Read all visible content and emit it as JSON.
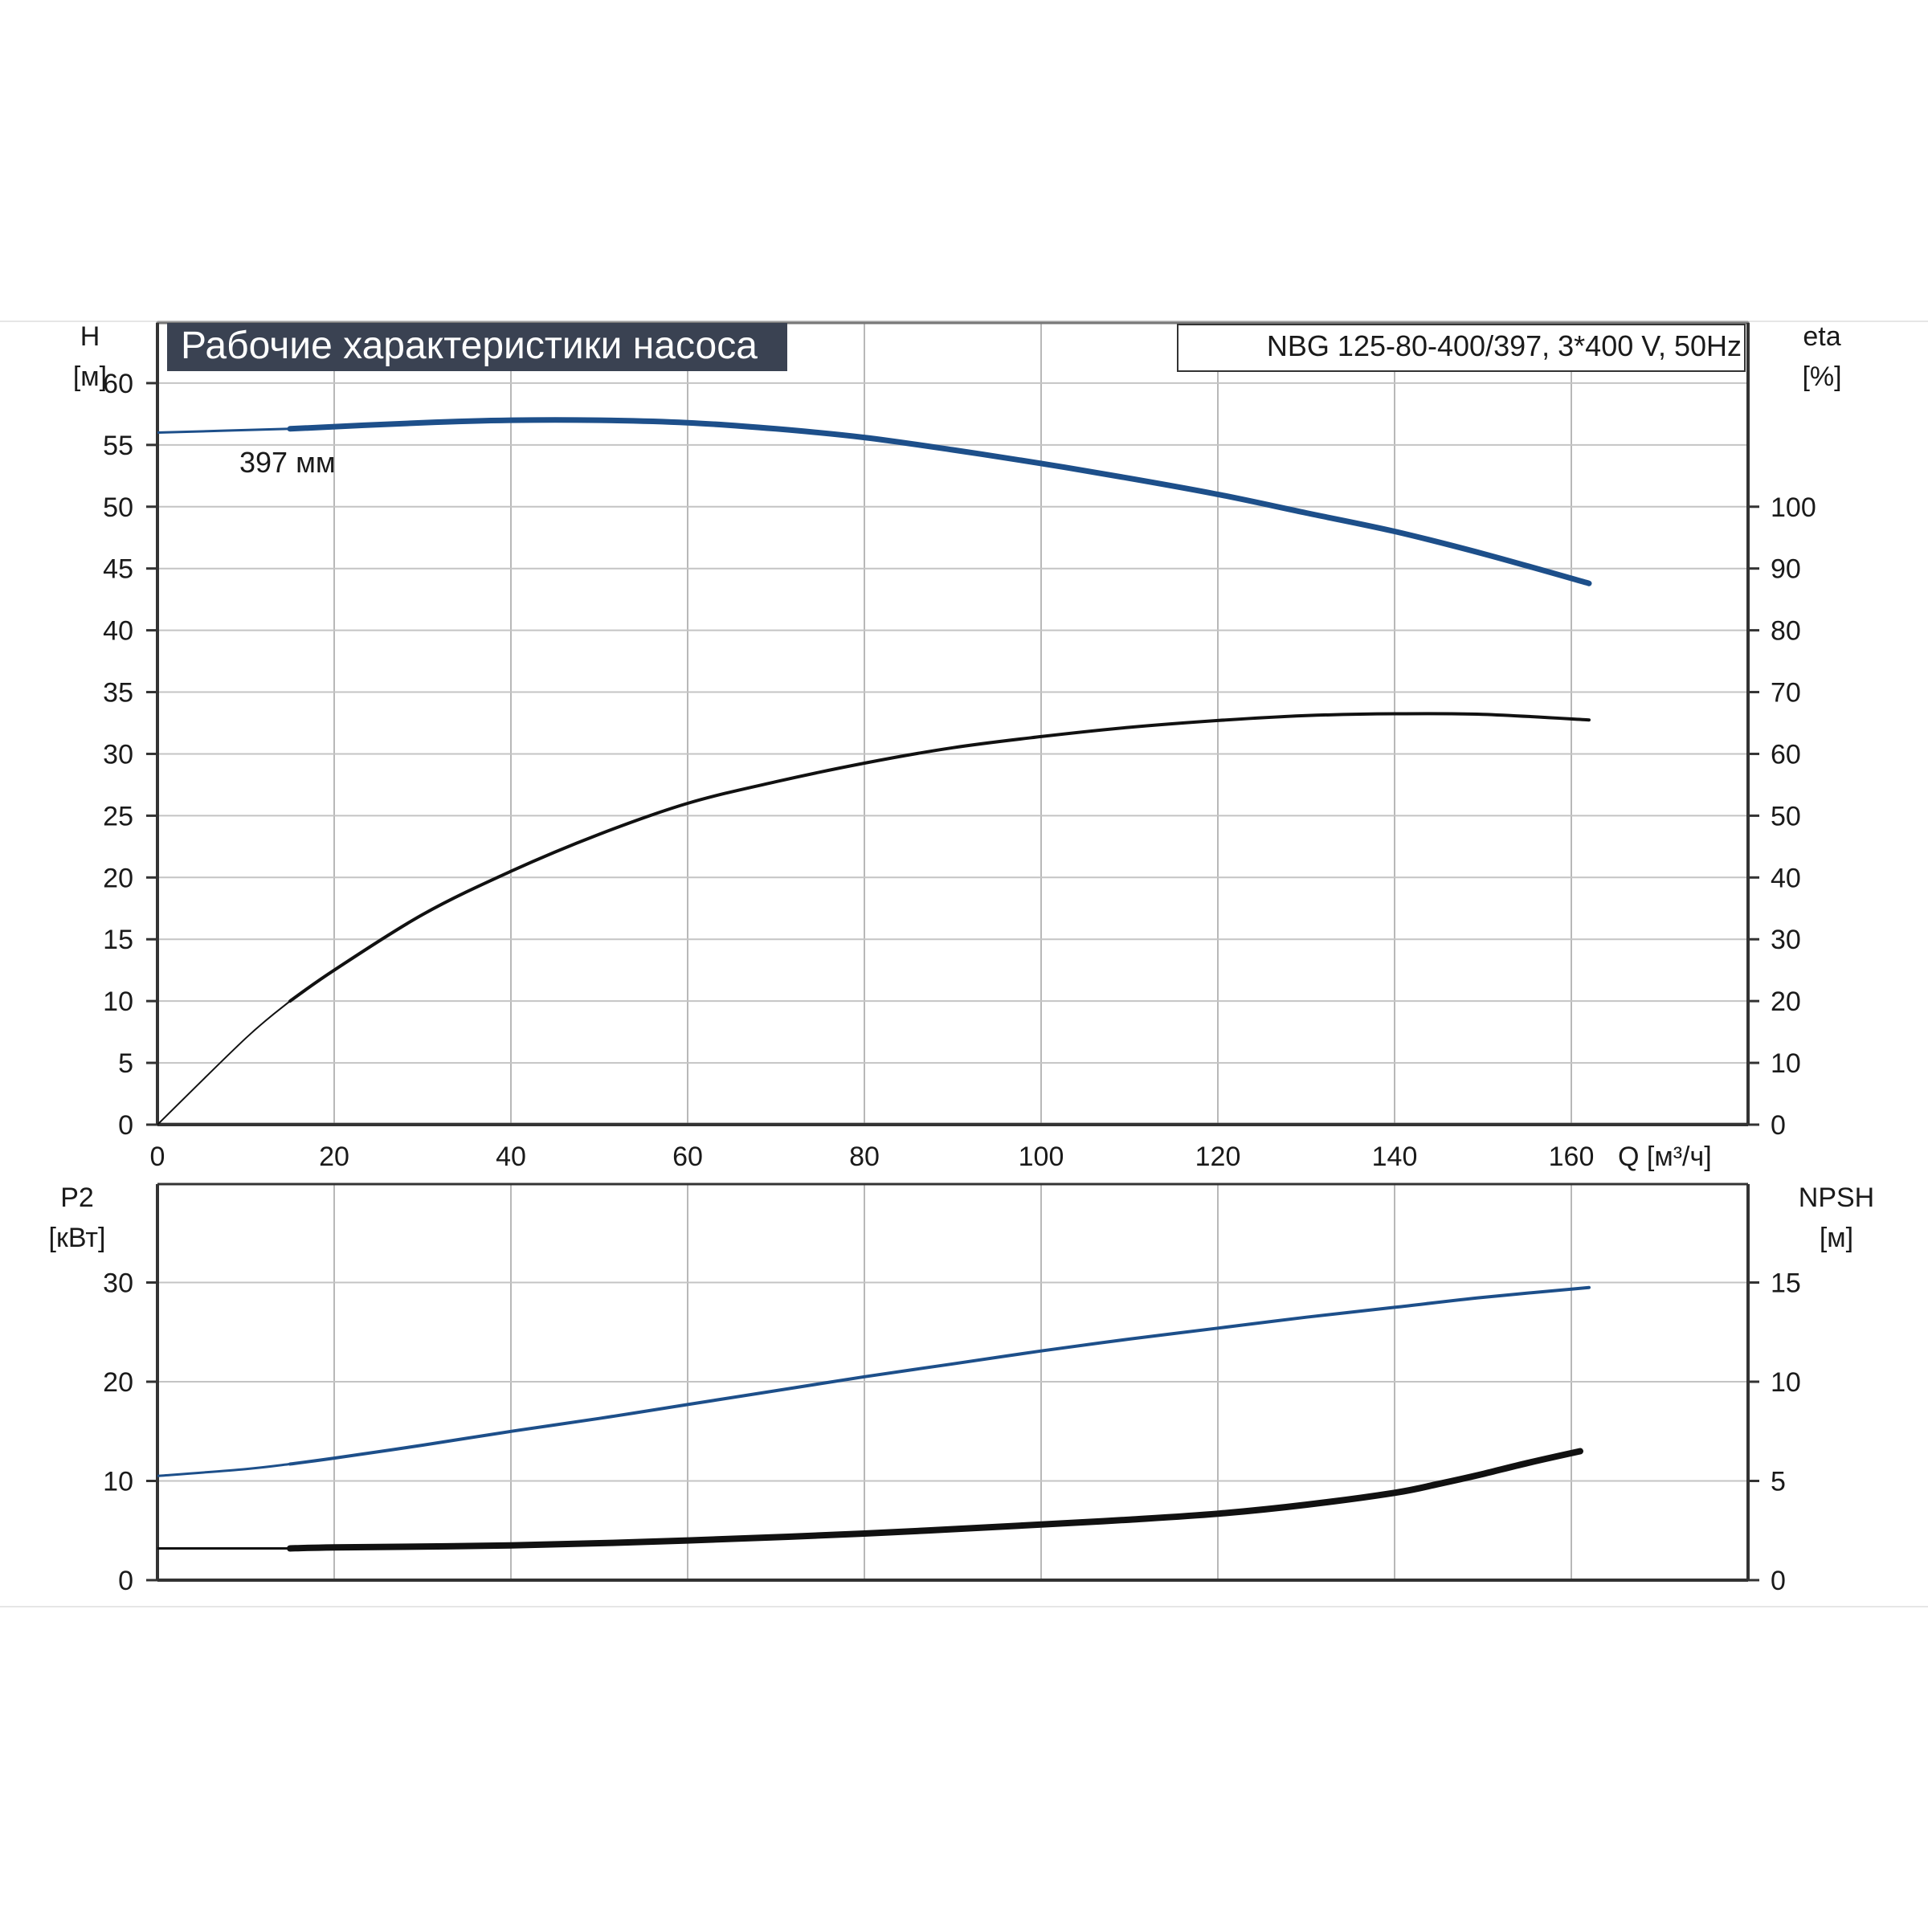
{
  "chart_data": [
    {
      "type": "line",
      "title": "Рабочие характеристики насоса",
      "model_label": "NBG 125-80-400/397, 3*400 V, 50Hz",
      "xlabel": "Q [м³/ч]",
      "ylabel": [
        "H",
        "[м]"
      ],
      "ylabel_right": [
        "eta",
        "[%]"
      ],
      "xlim": [
        0,
        180
      ],
      "ylim": [
        0,
        65
      ],
      "ylim_right": [
        0,
        130
      ],
      "x_ticks": [
        "0",
        "20",
        "40",
        "60",
        "80",
        "100",
        "120",
        "140",
        "160"
      ],
      "y_ticks": [
        "0",
        "5",
        "10",
        "15",
        "20",
        "25",
        "30",
        "35",
        "40",
        "45",
        "50",
        "55",
        "60"
      ],
      "y_ticks_right": [
        "0",
        "10",
        "20",
        "30",
        "40",
        "50",
        "60",
        "70",
        "80",
        "90",
        "100"
      ],
      "grid": true,
      "annotation": "397 мм",
      "series": [
        {
          "name": "H",
          "axis": "left",
          "color": "#1d4f8a",
          "x": [
            0,
            15,
            30,
            40,
            50,
            60,
            70,
            80,
            90,
            100,
            110,
            120,
            130,
            140,
            150,
            162
          ],
          "y": [
            56.0,
            56.3,
            56.8,
            57.0,
            57.0,
            56.8,
            56.3,
            55.6,
            54.6,
            53.5,
            52.3,
            51.0,
            49.5,
            48.0,
            46.2,
            43.8
          ]
        },
        {
          "name": "eta",
          "axis": "right",
          "color": "#111111",
          "x": [
            0,
            10,
            15,
            20,
            30,
            40,
            50,
            60,
            70,
            80,
            90,
            100,
            110,
            120,
            130,
            140,
            150,
            162
          ],
          "y": [
            0,
            14,
            20,
            25,
            34,
            41,
            47,
            52,
            55.5,
            58.5,
            61,
            62.8,
            64.3,
            65.4,
            66.2,
            66.5,
            66.4,
            65.5
          ]
        }
      ]
    },
    {
      "type": "line",
      "xlim": [
        0,
        180
      ],
      "ylabel": [
        "P2",
        "[кВт]"
      ],
      "ylabel_right": [
        "NPSH",
        "[м]"
      ],
      "ylim": [
        0,
        40
      ],
      "ylim_right": [
        0,
        20
      ],
      "y_ticks": [
        "0",
        "10",
        "20",
        "30"
      ],
      "y_ticks_right": [
        "0",
        "5",
        "10",
        "15"
      ],
      "grid": true,
      "series": [
        {
          "name": "P2",
          "axis": "left",
          "color": "#1d4f8a",
          "x": [
            0,
            10,
            15,
            20,
            30,
            40,
            50,
            60,
            70,
            80,
            90,
            100,
            110,
            120,
            130,
            140,
            150,
            162
          ],
          "y": [
            10.5,
            11.2,
            11.7,
            12.3,
            13.6,
            15.0,
            16.3,
            17.7,
            19.1,
            20.5,
            21.8,
            23.1,
            24.3,
            25.4,
            26.5,
            27.5,
            28.5,
            29.5
          ]
        },
        {
          "name": "NPSH",
          "axis": "right",
          "color": "#111111",
          "x": [
            0,
            15,
            20,
            40,
            60,
            80,
            100,
            110,
            120,
            130,
            140,
            145,
            150,
            155,
            161
          ],
          "y": [
            1.6,
            1.6,
            1.65,
            1.75,
            2.0,
            2.35,
            2.8,
            3.05,
            3.35,
            3.8,
            4.4,
            4.85,
            5.35,
            5.9,
            6.5
          ]
        }
      ]
    }
  ]
}
